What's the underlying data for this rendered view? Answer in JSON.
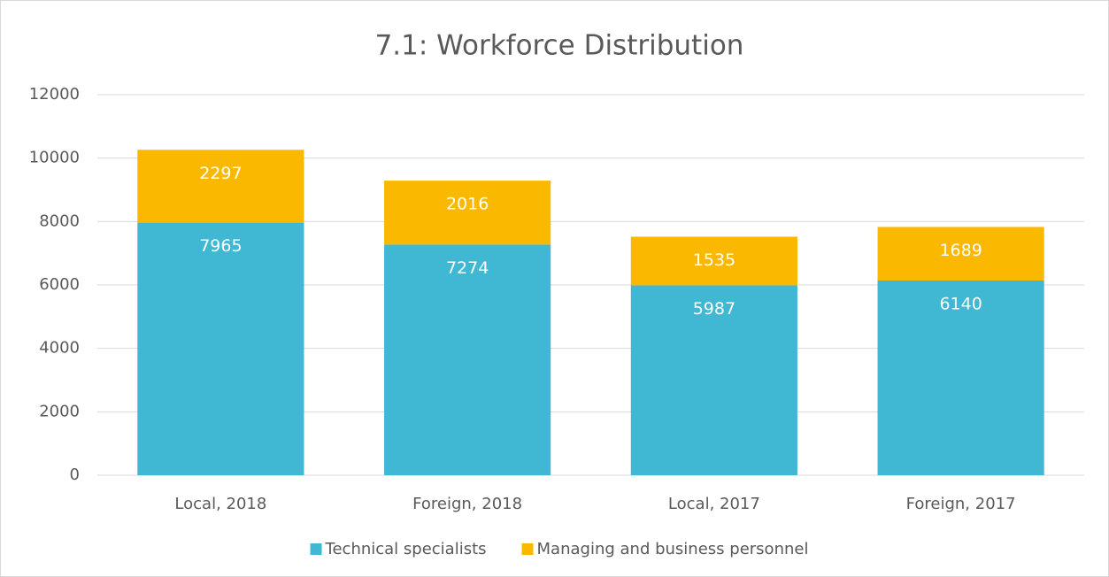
{
  "chart_data": {
    "type": "bar",
    "stacked": true,
    "title": "7.1: Workforce Distribution",
    "categories": [
      "Local, 2018",
      "Foreign, 2018",
      "Local, 2017",
      "Foreign, 2017"
    ],
    "series": [
      {
        "name": "Technical specialists",
        "color": "#40b8d3",
        "values": [
          7965,
          7274,
          5987,
          6140
        ]
      },
      {
        "name": "Managing and business personnel",
        "color": "#fbb800",
        "values": [
          2297,
          2016,
          1535,
          1689
        ]
      }
    ],
    "ylim": [
      0,
      12000
    ],
    "yticks": [
      0,
      2000,
      4000,
      6000,
      8000,
      10000,
      12000
    ],
    "grid": true,
    "legend": "bottom"
  }
}
